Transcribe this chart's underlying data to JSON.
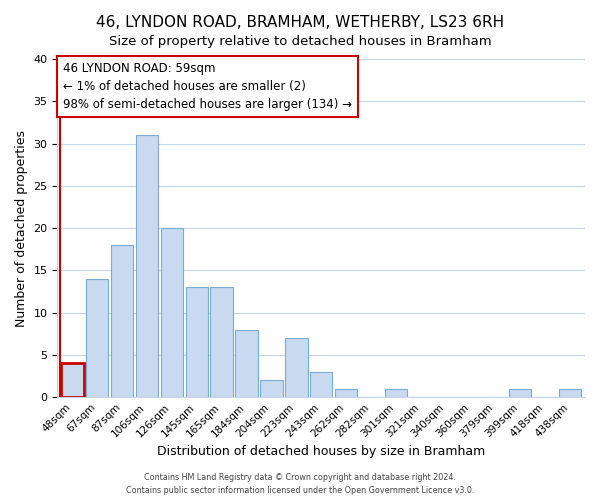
{
  "title": "46, LYNDON ROAD, BRAMHAM, WETHERBY, LS23 6RH",
  "subtitle": "Size of property relative to detached houses in Bramham",
  "xlabel": "Distribution of detached houses by size in Bramham",
  "ylabel": "Number of detached properties",
  "bar_labels": [
    "48sqm",
    "67sqm",
    "87sqm",
    "106sqm",
    "126sqm",
    "145sqm",
    "165sqm",
    "184sqm",
    "204sqm",
    "223sqm",
    "243sqm",
    "262sqm",
    "282sqm",
    "301sqm",
    "321sqm",
    "340sqm",
    "360sqm",
    "379sqm",
    "399sqm",
    "418sqm",
    "438sqm"
  ],
  "bar_values": [
    4,
    14,
    18,
    31,
    20,
    13,
    13,
    8,
    2,
    7,
    3,
    1,
    0,
    1,
    0,
    0,
    0,
    0,
    1,
    0,
    1
  ],
  "bar_color": "#c8d9f0",
  "bar_edge_color": "#7aadd4",
  "highlight_bar_index": 0,
  "highlight_bar_edge_color": "#cc0000",
  "annotation_line1": "46 LYNDON ROAD: 59sqm",
  "annotation_line2": "← 1% of detached houses are smaller (2)",
  "annotation_line3": "98% of semi-detached houses are larger (134) →",
  "annotation_box_edge_color": "#cc0000",
  "annotation_box_face_color": "#ffffff",
  "red_vline_x": -0.5,
  "ylim": [
    0,
    40
  ],
  "yticks": [
    0,
    5,
    10,
    15,
    20,
    25,
    30,
    35,
    40
  ],
  "grid_color": "#c8d4e8",
  "bg_color": "#ffffff",
  "footer_line1": "Contains HM Land Registry data © Crown copyright and database right 2024.",
  "footer_line2": "Contains public sector information licensed under the Open Government Licence v3.0.",
  "title_fontsize": 11,
  "xlabel_fontsize": 9,
  "ylabel_fontsize": 9
}
